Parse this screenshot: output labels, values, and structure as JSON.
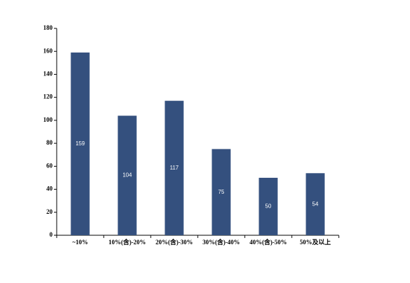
{
  "chart_data": {
    "type": "bar",
    "categories": [
      "~10%",
      "10%(含)-20%",
      "20%(含)-30%",
      "30%(含)-40%",
      "40%(含)-50%",
      "50%及以上"
    ],
    "values": [
      159,
      104,
      117,
      75,
      50,
      54
    ],
    "color": "#34507e",
    "ylim": [
      0,
      180
    ],
    "yticks": [
      0,
      20,
      40,
      60,
      80,
      100,
      120,
      140,
      160,
      180
    ],
    "grid": false
  }
}
